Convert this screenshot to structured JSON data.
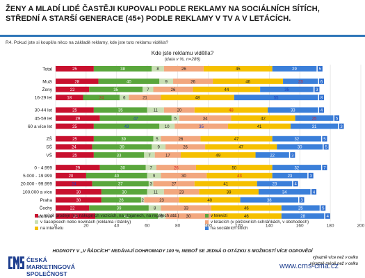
{
  "title": {
    "line1": "ŽENY A MLADÍ LIDÉ ČASTĚJI KUPOVALI PODLE REKLAMY NA SOCIÁLNÍCH SÍTÍCH,",
    "line2": "STŘEDNÍ A STARŠÍ GENERACE (45+) PODLE REKLAMY V TV A V LETÁCÍCH."
  },
  "question": "R4. Pokud jste si koupil/a něco na základě reklamy, kde jste tuto reklamu viděl/a?",
  "chart_title": "Kde jste reklamu viděl/a?",
  "chart_subtitle": "(data v %, n=286)",
  "note": "HODNOTY V „V ŘÁDCÍCH\" NEDÁVAJÍ DOHROMADY 100 %, NEBOŤ SE JEDNÁ O OTÁZKU S MOŽNOSTÍ VÍCE ODPOVĚDÍ",
  "significance": {
    "higher": "výrazně více než v celku",
    "lower": "výrazně méně než v celku",
    "higher_color": "#1f5fbf",
    "lower_color": "#d62027"
  },
  "logo": {
    "line1": "ČESKÁ",
    "line2": "MARKETINGOVÁ",
    "line3": "SPOLEČNOST"
  },
  "website": "www.cms-cma.cz",
  "legend": [
    {
      "name": "v místě prodeje (na nákupních vozících, na stojanech, na regálech atd.)",
      "color": "#c8102e"
    },
    {
      "name": "v televizi",
      "color": "#5aa63c"
    },
    {
      "name": "v časopisech nebo novinách (reklama i články)",
      "color": "#c9dfb4"
    },
    {
      "name": "v letácích (v poštovních schránkách, v obchodech)",
      "color": "#f2a77e"
    },
    {
      "name": "na internetu",
      "color": "#f5c000"
    },
    {
      "name": "na sociálních sítích",
      "color": "#3b7fd9"
    }
  ],
  "chart_data": {
    "type": "bar",
    "orientation": "horizontal",
    "stacked": true,
    "xlim": [
      0,
      200
    ],
    "xticks": [
      "0",
      "20",
      "40",
      "60",
      "80",
      "100",
      "120",
      "140",
      "160",
      "180",
      "200"
    ],
    "grid": true,
    "legend_position": "bottom",
    "categories": [
      "Total",
      "Muži",
      "Ženy",
      "16-29 let",
      "30-44 let",
      "45-59 let",
      "60 a více let",
      "ZŠ",
      "SŠ",
      "VŠ",
      "0 - 4.999",
      "5.000 - 19.999",
      "20.000 - 99.999",
      "100.000 a více",
      "Praha",
      "Čechy",
      "Morava"
    ],
    "gaps_after": [
      "Total",
      "16-29 let",
      "60 a více let",
      "VŠ"
    ],
    "series": [
      {
        "name": "v místě prodeje (na nákupních vozících, na stojanech, na regálech atd.)",
        "values": [
          25,
          28,
          22,
          18,
          25,
          29,
          25,
          25,
          24,
          25,
          29,
          20,
          24,
          30,
          30,
          22,
          26
        ]
      },
      {
        "name": "v televizi",
        "values": [
          38,
          40,
          35,
          24,
          35,
          47,
          43,
          39,
          39,
          33,
          30,
          40,
          37,
          30,
          26,
          39,
          41
        ]
      },
      {
        "name": "v časopisech nebo novinách (reklama i článk)",
        "values": [
          8,
          9,
          7,
          6,
          11,
          5,
          10,
          5,
          9,
          7,
          7,
          9,
          3,
          11,
          2,
          8,
          5
        ]
      },
      {
        "name": "v letácích (v poštovních schránkách, v obchodech)",
        "values": [
          26,
          26,
          26,
          21,
          20,
          34,
          35,
          26,
          26,
          17,
          26,
          30,
          27,
          23,
          23,
          33,
          30
        ]
      },
      {
        "name": "na internetu",
        "values": [
          45,
          46,
          44,
          48,
          48,
          42,
          41,
          47,
          47,
          49,
          50,
          43,
          41,
          39,
          40,
          46,
          46
        ]
      },
      {
        "name": "na sociálních sítích",
        "values": [
          29,
          23,
          35,
          55,
          33,
          25,
          31,
          32,
          30,
          22,
          32,
          23,
          23,
          34,
          38,
          25,
          28
        ]
      }
    ],
    "tail_labels": [
      "5",
      "6",
      "3",
      "8",
      "4",
      "5",
      "3",
      "5",
      "5",
      "3",
      "7",
      "3",
      "4",
      "4",
      "3",
      "5",
      "4"
    ],
    "highlighted": {
      "lower": [
        [
          1,
          5
        ],
        [
          3,
          1
        ],
        [
          4,
          4
        ],
        [
          5,
          5
        ],
        [
          10,
          3
        ],
        [
          11,
          4
        ]
      ],
      "higher": [
        [
          2,
          5
        ],
        [
          3,
          5
        ],
        [
          5,
          1
        ],
        [
          6,
          1
        ],
        [
          6,
          3
        ],
        [
          12,
          0
        ]
      ]
    }
  }
}
